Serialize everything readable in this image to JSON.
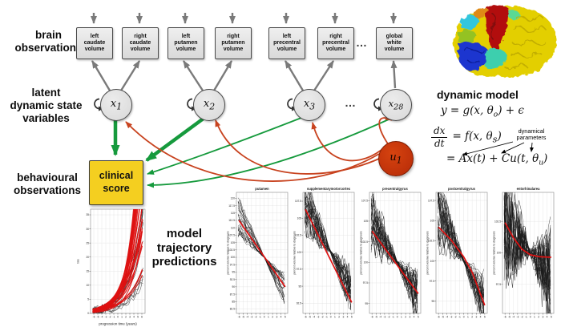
{
  "labels": {
    "brain_observations": "brain\nobservations",
    "latent": "latent\ndynamic state\nvariables",
    "behavioural": "behavioural\nobservations",
    "model_traj": "model\ntrajectory\npredictions",
    "ellipsis": "…"
  },
  "observation_boxes": [
    {
      "label": "left\ncaudate\nvolume"
    },
    {
      "label": "right\ncaudate\nvolume"
    },
    {
      "label": "left\nputamen\nvolume"
    },
    {
      "label": "right\nputamen\nvolume"
    },
    {
      "label": "left\nprecentral\nvolume"
    },
    {
      "label": "right\nprecentral\nvolume"
    },
    {
      "label": "global\nwhite\nvolume"
    }
  ],
  "latent_nodes": [
    {
      "base": "x",
      "sub": "1"
    },
    {
      "base": "x",
      "sub": "2"
    },
    {
      "base": "x",
      "sub": "3"
    },
    {
      "base": "x",
      "sub": "28"
    }
  ],
  "input_node": {
    "base": "u",
    "sub": "1"
  },
  "clinical_box": {
    "label": "clinical\nscore"
  },
  "equations": {
    "heading": "dynamic model",
    "eq1_a": "y = g(x, θ",
    "eq1_sub": "o",
    "eq1_b": ") + ϵ",
    "frac_num": "dx",
    "frac_den": "dt",
    "eq2_a": "= f(x, θ",
    "eq2_sub": "s",
    "eq2_b": ")",
    "annotation": "dynamical\nparameters",
    "eq3_a": "= Ax(t) + Cu(t, θ",
    "eq3_sub": "u",
    "eq3_b": ")"
  },
  "colors": {
    "green_arrow": "#169a3d",
    "red_arrow": "#c8431f",
    "gray_arrow": "#7a7a7a",
    "clinical_yellow": "#f4cf20",
    "input_red": "#b52a08",
    "trend_red": "#dd1111"
  },
  "chart_data": [
    {
      "type": "line",
      "title": "",
      "xlabel": "progression time (years)",
      "ylabel": "tms",
      "xticks": [
        -6,
        -5,
        -4,
        -3,
        -2,
        -1,
        0,
        1,
        2,
        3,
        4,
        5,
        6
      ],
      "yticks": [
        0,
        5,
        10,
        15,
        20,
        25,
        30,
        35
      ],
      "red_fan": {
        "n": 26,
        "amp_range": [
          2.5,
          8.5
        ],
        "rate_range": [
          0.22,
          0.42
        ]
      },
      "spaghetti": {
        "mode": "rise",
        "n": 16,
        "amp_range": [
          1.5,
          6.5
        ],
        "rate": 0.3,
        "noise": 2.2
      },
      "layout": {
        "xlim": [
          -6.8,
          6.8
        ],
        "ylim": [
          0,
          37
        ],
        "margins": {
          "l": 18,
          "r": 6,
          "t": 5,
          "b": 17
        },
        "seed": 11
      }
    },
    {
      "type": "line",
      "title": "putamen",
      "xlabel": "",
      "ylabel": "percent volume relative to diagnosis",
      "xticks": [
        -6,
        -5,
        -4,
        -3,
        -2,
        -1,
        0,
        1,
        2,
        3,
        4,
        5
      ],
      "yticks": [
        82.5,
        85,
        87.5,
        90,
        92.5,
        95,
        97.5,
        100,
        102.5,
        105,
        107.5,
        110,
        112.5,
        115,
        117.5,
        120
      ],
      "red_trend": {
        "x": [
          -6,
          5
        ],
        "y": [
          112.5,
          90
        ]
      },
      "spaghetti": {
        "mode": "converge",
        "n": 24,
        "slope_range": [
          1.2,
          3.2
        ],
        "noise": 1.6
      },
      "layout": {
        "xlim": [
          -6.6,
          5.6
        ],
        "ylim": [
          81,
          122
        ],
        "margins": {
          "l": 13,
          "r": 3,
          "t": 9,
          "b": 12
        },
        "seed": 21
      }
    },
    {
      "type": "line",
      "title": "supplementarymotorcortex",
      "xlabel": "",
      "ylabel": "percent volume relative to diagnosis",
      "xticks": [
        -6,
        -5,
        -4,
        -3,
        -2,
        -1,
        0,
        1,
        2,
        3,
        4,
        5
      ],
      "yticks": [
        92.5,
        95,
        97.5,
        100,
        102.5,
        105,
        107.5
      ],
      "red_trend": {
        "x": [
          -6,
          5
        ],
        "y": [
          106.3,
          92.6
        ]
      },
      "spaghetti": {
        "mode": "converge",
        "n": 30,
        "slope_range": [
          0.7,
          1.6
        ],
        "noise": 2.8
      },
      "layout": {
        "xlim": [
          -6.6,
          5.6
        ],
        "ylim": [
          91,
          108.8
        ],
        "margins": {
          "l": 13,
          "r": 3,
          "t": 9,
          "b": 12
        },
        "seed": 22
      }
    },
    {
      "type": "line",
      "title": "precentralgyrus",
      "xlabel": "",
      "ylabel": "percent volume relative to diagnosis",
      "xticks": [
        -6,
        -5,
        -4,
        -3,
        -2,
        -1,
        0,
        1,
        2,
        3,
        4,
        5
      ],
      "yticks": [
        95,
        97.5,
        100,
        102.5,
        105,
        107.5
      ],
      "red_trend": {
        "x": [
          -6,
          5
        ],
        "y": [
          103.8,
          96.2
        ]
      },
      "spaghetti": {
        "mode": "converge",
        "n": 30,
        "slope_range": [
          0.4,
          1.3
        ],
        "noise": 2.6
      },
      "layout": {
        "xlim": [
          -6.6,
          5.6
        ],
        "ylim": [
          93.8,
          108.5
        ],
        "margins": {
          "l": 13,
          "r": 3,
          "t": 9,
          "b": 12
        },
        "seed": 23
      }
    },
    {
      "type": "line",
      "title": "postcentralgyrus",
      "xlabel": "",
      "ylabel": "percent volume relative to diagnosis",
      "xticks": [
        -6,
        -5,
        -4,
        -3,
        -2,
        -1,
        0,
        1,
        2,
        3,
        4,
        5
      ],
      "yticks": [
        95,
        97.5,
        100,
        102.5,
        105,
        107.5
      ],
      "red_trend": {
        "x": [
          -6,
          -3,
          0,
          2,
          5
        ],
        "y": [
          104.2,
          102.6,
          100.5,
          98.6,
          94.5
        ]
      },
      "spaghetti": {
        "mode": "converge",
        "n": 30,
        "slope_range": [
          0.5,
          1.5
        ],
        "noise": 2.6
      },
      "layout": {
        "xlim": [
          -6.6,
          5.6
        ],
        "ylim": [
          93.5,
          108.5
        ],
        "margins": {
          "l": 13,
          "r": 3,
          "t": 9,
          "b": 12
        },
        "seed": 24
      }
    },
    {
      "type": "line",
      "title": "entorhinalarea",
      "xlabel": "",
      "ylabel": "percent volume relative to diagnosis",
      "xticks": [
        -6,
        -5,
        -4,
        -3,
        -2,
        -1,
        0,
        1,
        2,
        3,
        4,
        5
      ],
      "yticks": [
        97.5,
        100,
        102.5
      ],
      "red_trend": {
        "x": [
          -6,
          -4,
          -2,
          0,
          2,
          5
        ],
        "y": [
          102.4,
          101.2,
          100.3,
          99.85,
          99.7,
          99.65
        ]
      },
      "spaghetti": {
        "mode": "converge",
        "n": 30,
        "slope_range": [
          0,
          0.8
        ],
        "noise": 4
      },
      "layout": {
        "xlim": [
          -6.6,
          5.6
        ],
        "ylim": [
          95.2,
          104.8
        ],
        "margins": {
          "l": 13,
          "r": 3,
          "t": 9,
          "b": 12
        },
        "seed": 25
      }
    }
  ]
}
